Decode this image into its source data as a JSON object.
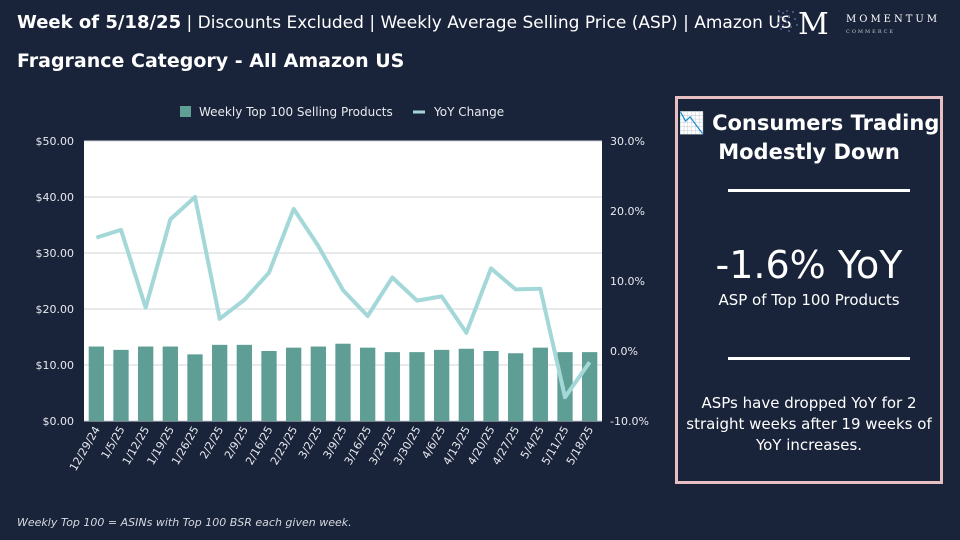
{
  "header": {
    "week_label": "Week of 5/18/25",
    "meta": [
      "Discounts Excluded",
      "Weekly Average Selling Price (ASP)",
      "Amazon US"
    ],
    "subtitle": "Fragrance Category - All Amazon US"
  },
  "logo": {
    "mark": "M",
    "name": "MOMENTUM",
    "sub": "COMMERCE"
  },
  "callout": {
    "icon": "📉",
    "title": "Consumers Trading Modestly Down",
    "headline": "-1.6% YoY",
    "headline_sub": "ASP of Top 100 Products",
    "note": "ASPs have dropped YoY for 2 straight weeks after 19 weeks of YoY increases."
  },
  "footnote": "Weekly Top 100 = ASINs with Top 100 BSR each given week.",
  "colors": {
    "background": "#192339",
    "bar": "#5f9e95",
    "line": "#a4d8d8",
    "callout_border": "#e6bfc3"
  },
  "chart_data": {
    "type": "bar",
    "categories": [
      "12/29/24",
      "1/5/25",
      "1/12/25",
      "1/19/25",
      "1/26/25",
      "2/2/25",
      "2/9/25",
      "2/16/25",
      "2/23/25",
      "3/2/25",
      "3/9/25",
      "3/16/25",
      "3/23/25",
      "3/30/25",
      "4/6/25",
      "4/13/25",
      "4/20/25",
      "4/27/25",
      "5/4/25",
      "5/11/25",
      "5/18/25"
    ],
    "series": [
      {
        "name": "Weekly Top 100 Selling Products",
        "type": "bar",
        "axis": "left",
        "values": [
          13.3,
          12.7,
          13.3,
          13.3,
          11.9,
          13.6,
          13.6,
          12.5,
          13.1,
          13.3,
          13.8,
          13.1,
          12.3,
          12.3,
          12.7,
          12.9,
          12.5,
          12.1,
          13.1,
          12.3,
          12.3
        ]
      },
      {
        "name": "YoY Change",
        "type": "line",
        "axis": "right",
        "values": [
          16.2,
          17.3,
          6.2,
          18.8,
          22.0,
          4.6,
          7.3,
          11.2,
          20.3,
          15.0,
          8.7,
          5.0,
          10.5,
          7.2,
          7.8,
          2.6,
          11.8,
          8.8,
          8.9,
          -6.6,
          -1.6
        ]
      }
    ],
    "left_axis": {
      "min": 0,
      "max": 50,
      "ticks": [
        "$0.00",
        "$10.00",
        "$20.00",
        "$30.00",
        "$40.00",
        "$50.00"
      ]
    },
    "right_axis": {
      "min": -10,
      "max": 30,
      "ticks": [
        "-10.0%",
        "0.0%",
        "10.0%",
        "20.0%",
        "30.0%"
      ]
    },
    "legend": "top-center",
    "grid": true
  }
}
